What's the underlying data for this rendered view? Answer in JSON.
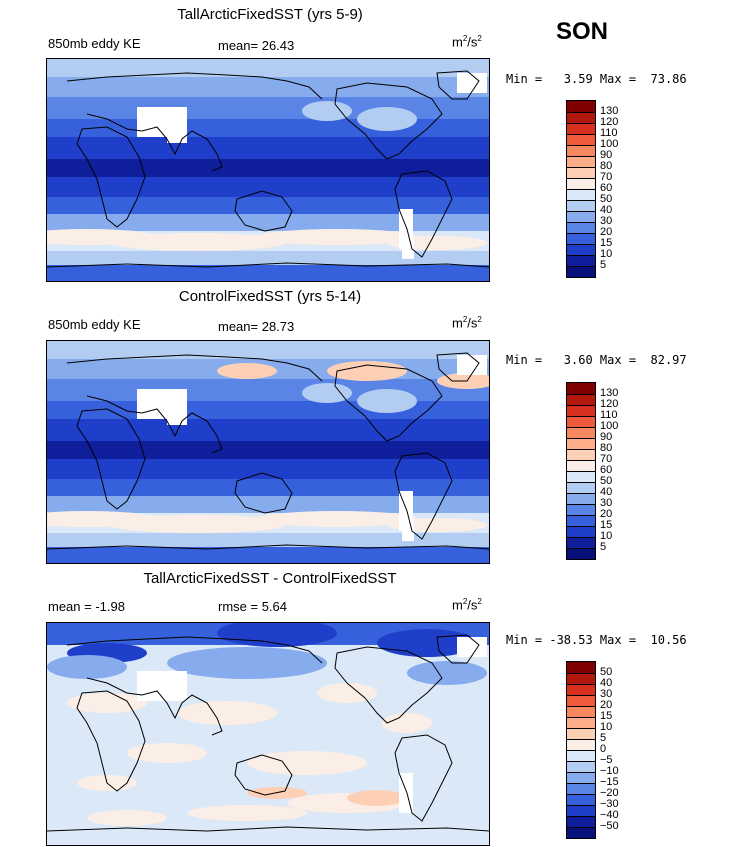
{
  "season": "SON",
  "panels": [
    {
      "title": "TallArcticFixedSST (yrs 5-9)",
      "left_label": "850mb eddy KE",
      "center_label": "mean=  26.43",
      "units_base": "m",
      "units_sup1": "2",
      "units_mid": "/s",
      "units_sup2": "2",
      "minmax": "Min =   3.59 Max =  73.86",
      "colorbar": {
        "labels": [
          "130",
          "120",
          "110",
          "100",
          "90",
          "80",
          "70",
          "60",
          "50",
          "40",
          "30",
          "20",
          "15",
          "10",
          "5"
        ],
        "colors": [
          "#7f0000",
          "#b2180e",
          "#d7301f",
          "#ef5a3c",
          "#f7875f",
          "#fcae8a",
          "#fdd0b5",
          "#fbeee6",
          "#dbe8f7",
          "#b3cdf2",
          "#86aced",
          "#5a84e6",
          "#3760dc",
          "#1f3fcb",
          "#0f1f9c",
          "#08107a"
        ]
      },
      "field_type": "abs"
    },
    {
      "title": "ControlFixedSST (yrs 5-14)",
      "left_label": "850mb eddy KE",
      "center_label": "mean=  28.73",
      "units_base": "m",
      "units_sup1": "2",
      "units_mid": "/s",
      "units_sup2": "2",
      "minmax": "Min =   3.60 Max =  82.97",
      "colorbar": {
        "labels": [
          "130",
          "120",
          "110",
          "100",
          "90",
          "80",
          "70",
          "60",
          "50",
          "40",
          "30",
          "20",
          "15",
          "10",
          "5"
        ],
        "colors": [
          "#7f0000",
          "#b2180e",
          "#d7301f",
          "#ef5a3c",
          "#f7875f",
          "#fcae8a",
          "#fdd0b5",
          "#fbeee6",
          "#dbe8f7",
          "#b3cdf2",
          "#86aced",
          "#5a84e6",
          "#3760dc",
          "#1f3fcb",
          "#0f1f9c",
          "#08107a"
        ]
      },
      "field_type": "abs"
    },
    {
      "title": "TallArcticFixedSST - ControlFixedSST",
      "left_label": "mean =  -1.98",
      "center_label": "rmse =   5.64",
      "units_base": "m",
      "units_sup1": "2",
      "units_mid": "/s",
      "units_sup2": "2",
      "minmax": "Min = -38.53 Max =  10.56",
      "colorbar": {
        "labels": [
          "50",
          "40",
          "30",
          "20",
          "15",
          "10",
          "5",
          "0",
          "−5",
          "−10",
          "−15",
          "−20",
          "−30",
          "−40",
          "−50"
        ],
        "colors": [
          "#7f0000",
          "#b2180e",
          "#d7301f",
          "#ef5a3c",
          "#f7875f",
          "#fcae8a",
          "#fdd0b5",
          "#fbeee6",
          "#dbe8f7",
          "#b3cdf2",
          "#86aced",
          "#5a84e6",
          "#3760dc",
          "#1f3fcb",
          "#0f1f9c",
          "#08107a"
        ]
      },
      "field_type": "diff"
    }
  ]
}
